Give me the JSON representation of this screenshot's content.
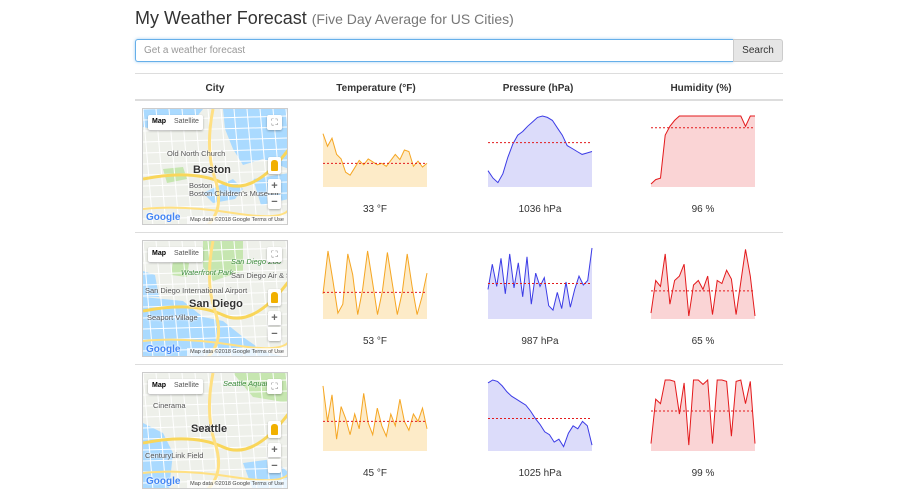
{
  "page": {
    "title": "My Weather Forecast",
    "subtitle": "(Five Day Average for US Cities)"
  },
  "search": {
    "placeholder": "Get a weather forecast",
    "value": "",
    "button": "Search"
  },
  "table": {
    "headers": {
      "city": "City",
      "temperature": "Temperature (°F)",
      "pressure": "Pressure (hPa)",
      "humidity": "Humidity (%)"
    }
  },
  "map_ui": {
    "map": "Map",
    "satellite": "Satellite",
    "fullscreen": "⛶",
    "zoom_in": "+",
    "zoom_out": "−",
    "google": "Google",
    "footer": "Map data ©2018 Google   Terms of Use"
  },
  "colors": {
    "temperature": {
      "line": "#f5a623",
      "fill": "#fdebc8"
    },
    "pressure": {
      "line": "#3c3ce6",
      "fill": "#dcdcfa"
    },
    "humidity": {
      "line": "#e31a1c",
      "fill": "#fad4d5"
    },
    "average": "#e31a1c"
  },
  "rows": [
    {
      "city": "Boston",
      "places": [
        "Old North Church",
        "Boston",
        "Boston Children's Museum"
      ],
      "temperature": {
        "label": "33 °F",
        "values": [
          72,
          55,
          66,
          44,
          38,
          20,
          16,
          26,
          36,
          30,
          38,
          34,
          30,
          32,
          28,
          36,
          44,
          37,
          50,
          48,
          28,
          35,
          27,
          32
        ],
        "average": 32
      },
      "pressure": {
        "label": "1036 hPa",
        "values": [
          22,
          12,
          6,
          18,
          40,
          58,
          70,
          75,
          82,
          88,
          94,
          96,
          94,
          90,
          80,
          70,
          56,
          52,
          48,
          44,
          46,
          48
        ],
        "average": 60
      },
      "humidity": {
        "label": "96 %",
        "values": [
          4,
          10,
          12,
          70,
          82,
          90,
          96,
          96,
          96,
          96,
          96,
          96,
          96,
          96,
          96,
          96,
          96,
          96,
          96,
          96,
          82,
          96,
          96
        ],
        "average": 80
      }
    },
    {
      "city": "San Diego",
      "places": [
        "San Diego Zoo",
        "Waterfront Park",
        "San Diego Air & Space Museum",
        "San Diego International Airport",
        "Seaport Village"
      ],
      "temperature": {
        "label": "53 °F",
        "values": [
          34,
          92,
          52,
          8,
          20,
          88,
          60,
          6,
          40,
          92,
          50,
          6,
          38,
          90,
          48,
          6,
          36,
          88,
          44,
          6,
          30,
          62
        ],
        "average": 36
      },
      "pressure": {
        "label": "987 hPa",
        "values": [
          40,
          74,
          44,
          82,
          34,
          88,
          42,
          76,
          30,
          84,
          20,
          62,
          44,
          56,
          18,
          12,
          36,
          14,
          50,
          16,
          40,
          58,
          46,
          52,
          96
        ],
        "average": 48
      },
      "humidity": {
        "label": "65 %",
        "values": [
          8,
          52,
          44,
          88,
          20,
          52,
          58,
          74,
          4,
          46,
          52,
          40,
          58,
          6,
          52,
          48,
          66,
          54,
          6,
          50,
          94,
          58,
          4
        ],
        "average": 38
      }
    },
    {
      "city": "Seattle",
      "places": [
        "Cinerama",
        "Seattle",
        "CenturyLink Field",
        "Seattle Aquarium"
      ],
      "temperature": {
        "label": "45 °F",
        "values": [
          88,
          40,
          76,
          16,
          60,
          44,
          22,
          50,
          30,
          78,
          38,
          22,
          58,
          34,
          20,
          50,
          34,
          70,
          40,
          28,
          50,
          40,
          58,
          30
        ],
        "average": 40
      },
      "pressure": {
        "label": "1025 hPa",
        "values": [
          92,
          96,
          94,
          88,
          80,
          74,
          70,
          66,
          62,
          54,
          44,
          36,
          26,
          22,
          12,
          16,
          6,
          24,
          34,
          30,
          40,
          34,
          8
        ],
        "average": 44
      },
      "humidity": {
        "label": "99 %",
        "values": [
          10,
          70,
          64,
          96,
          96,
          94,
          50,
          92,
          8,
          96,
          96,
          90,
          96,
          10,
          96,
          96,
          94,
          20,
          94,
          96,
          64,
          94,
          10
        ],
        "average": 54
      }
    }
  ]
}
